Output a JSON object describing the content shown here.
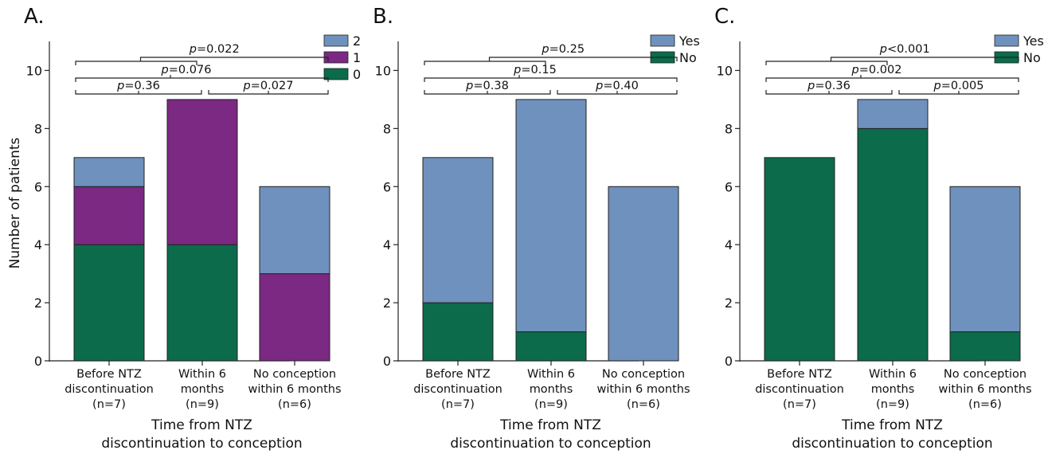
{
  "figure": {
    "ylabel": "Number of patients"
  },
  "chart_data": [
    {
      "panel": "A.",
      "type": "bar",
      "stacked": true,
      "categories": [
        "Before NTZ discontinuation (n=7)",
        "Within 6 months (n=9)",
        "No conception within 6 months (n=6)"
      ],
      "category_lines": [
        [
          "Before NTZ",
          "discontinuation",
          "(n=7)"
        ],
        [
          "Within 6",
          "months",
          "(n=9)"
        ],
        [
          "No conception",
          "within 6 months",
          "(n=6)"
        ]
      ],
      "xlabel_lines": [
        "Time from NTZ",
        "discontinuation to conception"
      ],
      "ylabel": "Number of patients",
      "ylim": [
        0,
        11
      ],
      "yticks": [
        0,
        2,
        4,
        6,
        8,
        10
      ],
      "series": [
        {
          "name": "0",
          "color": "#0b6b4b",
          "values": [
            4,
            4,
            0
          ]
        },
        {
          "name": "1",
          "color": "#7b2982",
          "values": [
            2,
            5,
            3
          ]
        },
        {
          "name": "2",
          "color": "#6f91bd",
          "values": [
            1,
            0,
            3
          ]
        }
      ],
      "legend": {
        "placement": "top-right",
        "order": [
          "2",
          "1",
          "0"
        ]
      },
      "comparisons": [
        {
          "from": 0,
          "to": 1,
          "level": 1,
          "p_prefix": "p",
          "p_value": "=0.36"
        },
        {
          "from": 1,
          "to": 2,
          "level": 1,
          "p_prefix": "p",
          "p_value": "=0.027"
        },
        {
          "from": 0,
          "to": 2,
          "level": 2,
          "p_prefix": "p",
          "p_value": "=0.076"
        },
        {
          "from": "01",
          "to": 2,
          "level": 3,
          "p_prefix": "p",
          "p_value": "=0.022"
        }
      ],
      "grid": false
    },
    {
      "panel": "B.",
      "type": "bar",
      "stacked": true,
      "categories": [
        "Before NTZ discontinuation (n=7)",
        "Within 6 months (n=9)",
        "No conception within 6 months (n=6)"
      ],
      "category_lines": [
        [
          "Before NTZ",
          "discontinuation",
          "(n=7)"
        ],
        [
          "Within 6",
          "months",
          "(n=9)"
        ],
        [
          "No conception",
          "within 6 months",
          "(n=6)"
        ]
      ],
      "xlabel_lines": [
        "Time from NTZ",
        "discontinuation to conception"
      ],
      "ylim": [
        0,
        11
      ],
      "yticks": [
        0,
        2,
        4,
        6,
        8,
        10
      ],
      "series": [
        {
          "name": "No",
          "color": "#0b6b4b",
          "values": [
            2,
            1,
            0
          ]
        },
        {
          "name": "Yes",
          "color": "#6f91bd",
          "values": [
            5,
            8,
            6
          ]
        }
      ],
      "legend": {
        "placement": "top-right",
        "order": [
          "Yes",
          "No"
        ]
      },
      "comparisons": [
        {
          "from": 0,
          "to": 1,
          "level": 1,
          "p_prefix": "p",
          "p_value": "=0.38"
        },
        {
          "from": 1,
          "to": 2,
          "level": 1,
          "p_prefix": "p",
          "p_value": "=0.40"
        },
        {
          "from": 0,
          "to": 2,
          "level": 2,
          "p_prefix": "p",
          "p_value": "=0.15"
        },
        {
          "from": "01",
          "to": 2,
          "level": 3,
          "p_prefix": "p",
          "p_value": "=0.25"
        }
      ],
      "grid": false
    },
    {
      "panel": "C.",
      "type": "bar",
      "stacked": true,
      "categories": [
        "Before NTZ discontinuation (n=7)",
        "Within 6 months (n=9)",
        "No conception within 6 months (n=6)"
      ],
      "category_lines": [
        [
          "Before NTZ",
          "discontinuation",
          "(n=7)"
        ],
        [
          "Within 6",
          "months",
          "(n=9)"
        ],
        [
          "No conception",
          "within 6 months",
          "(n=6)"
        ]
      ],
      "xlabel_lines": [
        "Time from NTZ",
        "discontinuation to conception"
      ],
      "ylim": [
        0,
        11
      ],
      "yticks": [
        0,
        2,
        4,
        6,
        8,
        10
      ],
      "series": [
        {
          "name": "No",
          "color": "#0b6b4b",
          "values": [
            7,
            8,
            1
          ]
        },
        {
          "name": "Yes",
          "color": "#6f91bd",
          "values": [
            0,
            1,
            5
          ]
        }
      ],
      "legend": {
        "placement": "top-right",
        "order": [
          "Yes",
          "No"
        ]
      },
      "comparisons": [
        {
          "from": 0,
          "to": 1,
          "level": 1,
          "p_prefix": "p",
          "p_value": "=0.36"
        },
        {
          "from": 1,
          "to": 2,
          "level": 1,
          "p_prefix": "p",
          "p_value": "=0.005"
        },
        {
          "from": 0,
          "to": 2,
          "level": 2,
          "p_prefix": "p",
          "p_value": "=0.002"
        },
        {
          "from": "01",
          "to": 2,
          "level": 3,
          "p_prefix": "p",
          "p_value": "<0.001"
        }
      ],
      "grid": false
    }
  ]
}
